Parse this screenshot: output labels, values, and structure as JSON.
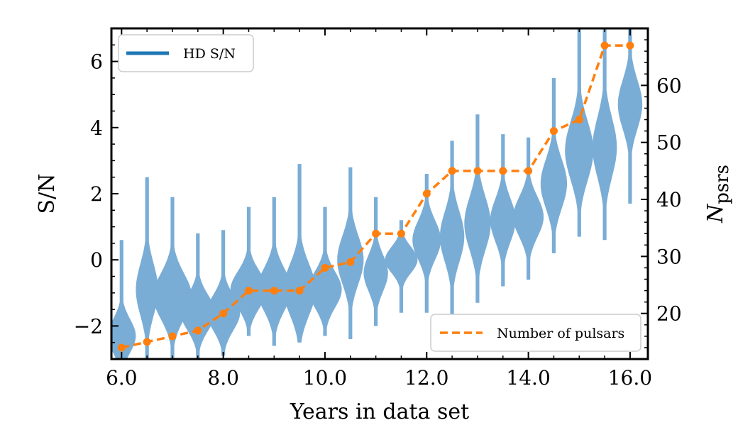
{
  "chart_data": {
    "type": "violin",
    "title": "",
    "xlabel": "Years in data set",
    "ylabel_left": "S/N",
    "ylabel_right_main": "N",
    "ylabel_right_sub": "psrs",
    "xlim": [
      5.8,
      16.35
    ],
    "ylim_left": [
      -3.0,
      7.0
    ],
    "ylim_right": [
      12,
      70
    ],
    "xticks": [
      "6.0",
      "8.0",
      "10.0",
      "12.0",
      "14.0",
      "16.0"
    ],
    "xtick_values": [
      6,
      8,
      10,
      12,
      14,
      16
    ],
    "yticks_left": [
      "6",
      "4",
      "2",
      "0",
      "−2"
    ],
    "ytick_values_left": [
      6,
      4,
      2,
      0,
      -2
    ],
    "yticks_right": [
      "60",
      "50",
      "40",
      "30",
      "20"
    ],
    "ytick_values_right": [
      60,
      50,
      40,
      30,
      20
    ],
    "grid": false,
    "colors": {
      "violin": "#7aadd6",
      "pulsars": "#ff7f0e",
      "legend_hd": "#1f77b4"
    },
    "legends": [
      {
        "label": "HD S/N",
        "placement": "top-left",
        "style": "solid"
      },
      {
        "label": "Number of pulsars",
        "placement": "bottom-right",
        "style": "dashed"
      }
    ],
    "violins": [
      {
        "x": 6.0,
        "min": -3.0,
        "max": 0.6,
        "median": -2.3,
        "width": 0.28
      },
      {
        "x": 6.5,
        "min": -3.0,
        "max": 2.5,
        "median": -0.9,
        "width": 0.22
      },
      {
        "x": 7.0,
        "min": -3.0,
        "max": 1.9,
        "median": -1.1,
        "width": 0.38
      },
      {
        "x": 7.5,
        "min": -3.0,
        "max": 0.8,
        "median": -1.6,
        "width": 0.34
      },
      {
        "x": 8.0,
        "min": -2.9,
        "max": 0.9,
        "median": -1.6,
        "width": 0.33
      },
      {
        "x": 8.5,
        "min": -2.3,
        "max": 1.6,
        "median": -0.9,
        "width": 0.36
      },
      {
        "x": 9.0,
        "min": -2.6,
        "max": 1.9,
        "median": -0.9,
        "width": 0.34
      },
      {
        "x": 9.5,
        "min": -2.5,
        "max": 2.9,
        "median": -0.9,
        "width": 0.32
      },
      {
        "x": 10.0,
        "min": -2.3,
        "max": 1.6,
        "median": -0.9,
        "width": 0.33
      },
      {
        "x": 10.5,
        "min": -2.4,
        "max": 2.8,
        "median": 0.0,
        "width": 0.26
      },
      {
        "x": 11.0,
        "min": -2.0,
        "max": 1.9,
        "median": -0.4,
        "width": 0.24
      },
      {
        "x": 11.5,
        "min": -1.6,
        "max": 1.2,
        "median": 0.0,
        "width": 0.32
      },
      {
        "x": 12.0,
        "min": -1.6,
        "max": 2.6,
        "median": 0.6,
        "width": 0.28
      },
      {
        "x": 12.5,
        "min": -1.8,
        "max": 3.6,
        "median": 0.7,
        "width": 0.24
      },
      {
        "x": 13.0,
        "min": -1.3,
        "max": 4.4,
        "median": 1.1,
        "width": 0.26
      },
      {
        "x": 13.5,
        "min": -0.8,
        "max": 3.8,
        "median": 1.2,
        "width": 0.25
      },
      {
        "x": 14.0,
        "min": -0.6,
        "max": 3.7,
        "median": 1.3,
        "width": 0.3
      },
      {
        "x": 14.5,
        "min": 0.2,
        "max": 5.5,
        "median": 2.3,
        "width": 0.26
      },
      {
        "x": 15.0,
        "min": 0.7,
        "max": 7.0,
        "median": 3.3,
        "width": 0.28
      },
      {
        "x": 15.5,
        "min": 0.6,
        "max": 7.0,
        "median": 3.4,
        "width": 0.24
      },
      {
        "x": 16.0,
        "min": 1.7,
        "max": 7.0,
        "median": 4.7,
        "width": 0.24
      }
    ],
    "pulsars": {
      "x": [
        6.0,
        6.5,
        7.0,
        7.5,
        8.0,
        8.5,
        9.0,
        9.5,
        10.0,
        10.5,
        11.0,
        11.5,
        12.0,
        12.5,
        13.0,
        13.5,
        14.0,
        14.5,
        15.0,
        15.5,
        16.0
      ],
      "y": [
        14,
        15,
        16,
        17,
        20,
        24,
        24,
        24,
        28,
        29,
        34,
        34,
        41,
        45,
        45,
        45,
        45,
        52,
        54,
        67,
        67
      ]
    }
  }
}
